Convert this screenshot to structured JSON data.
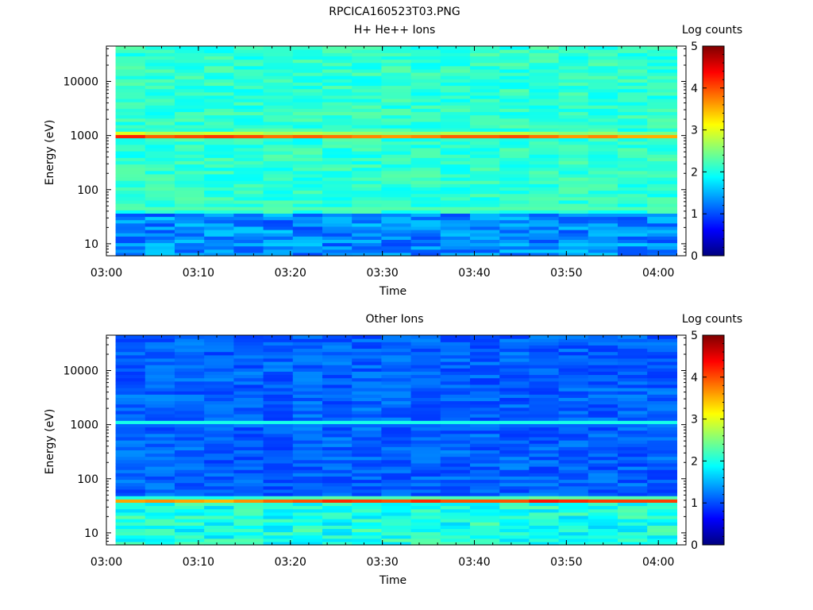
{
  "figure_title": "RPCICA160523T03.PNG",
  "colormap": [
    "#00007f",
    "#0000ff",
    "#007fff",
    "#00ffff",
    "#7fff7f",
    "#ffff00",
    "#ff7f00",
    "#ff0000",
    "#7f0000"
  ],
  "chart_data": [
    {
      "type": "heatmap",
      "title": "H+ He++ Ions",
      "xlabel": "Time",
      "ylabel": "Energy (eV)",
      "y_scale": "log",
      "xlim": [
        "03:00",
        "04:03"
      ],
      "ylim": [
        6,
        45000
      ],
      "x_ticks": [
        "03:00",
        "03:10",
        "03:20",
        "03:30",
        "03:40",
        "03:50",
        "04:00"
      ],
      "y_ticks": [
        "10",
        "100",
        "1000",
        "10000"
      ],
      "colorbar": {
        "label": "Log counts",
        "range": [
          0,
          5
        ],
        "ticks": [
          "0",
          "1",
          "2",
          "3",
          "4",
          "5"
        ]
      },
      "time_bins": 19,
      "energy_bins": 64,
      "data_start": "03:01",
      "data_end": "04:02",
      "background_log_counts": 2.1,
      "features": [
        {
          "name": "",
          "energy_eV": 1000,
          "peak_log_counts": 4.0,
          "width_decades": 0.08,
          "peak_by_time_bin": [
            4.3,
            4.0,
            4.1,
            4.2,
            4.1,
            3.9,
            4.0,
            3.9,
            3.8,
            3.7,
            3.8,
            4.0,
            4.0,
            4.1,
            3.9,
            3.7,
            3.8,
            3.6,
            3.6
          ]
        },
        {
          "name": "",
          "energy_eV": 2100,
          "peak_log_counts": 2.5,
          "width_decades": 0.06
        },
        {
          "name": "",
          "energy_eV": 45,
          "peak_log_counts": 2.3,
          "width_decades": 0.05
        }
      ],
      "low_energy_log_counts": 1.3
    },
    {
      "type": "heatmap",
      "title": "Other Ions",
      "xlabel": "Time",
      "ylabel": "Energy (eV)",
      "y_scale": "log",
      "xlim": [
        "03:00",
        "04:03"
      ],
      "ylim": [
        6,
        45000
      ],
      "x_ticks": [
        "03:00",
        "03:10",
        "03:20",
        "03:30",
        "03:40",
        "03:50",
        "04:00"
      ],
      "y_ticks": [
        "10",
        "100",
        "1000",
        "10000"
      ],
      "colorbar": {
        "label": "Log counts",
        "range": [
          0,
          5
        ],
        "ticks": [
          "0",
          "1",
          "2",
          "3",
          "4",
          "5"
        ]
      },
      "time_bins": 19,
      "energy_bins": 64,
      "data_start": "03:01",
      "data_end": "04:02",
      "background_log_counts": 1.1,
      "features": [
        {
          "name": "",
          "energy_eV": 40,
          "peak_log_counts": 3.9,
          "width_decades": 0.07,
          "peak_by_time_bin": [
            3.6,
            3.7,
            3.6,
            3.5,
            3.7,
            3.9,
            4.0,
            4.2,
            4.1,
            4.0,
            4.2,
            4.0,
            4.0,
            4.0,
            4.3,
            4.2,
            4.1,
            4.1,
            4.1
          ]
        },
        {
          "name": "",
          "energy_eV": 1100,
          "peak_log_counts": 2.0,
          "width_decades": 0.07
        }
      ],
      "low_energy_log_counts": 2.0
    }
  ]
}
